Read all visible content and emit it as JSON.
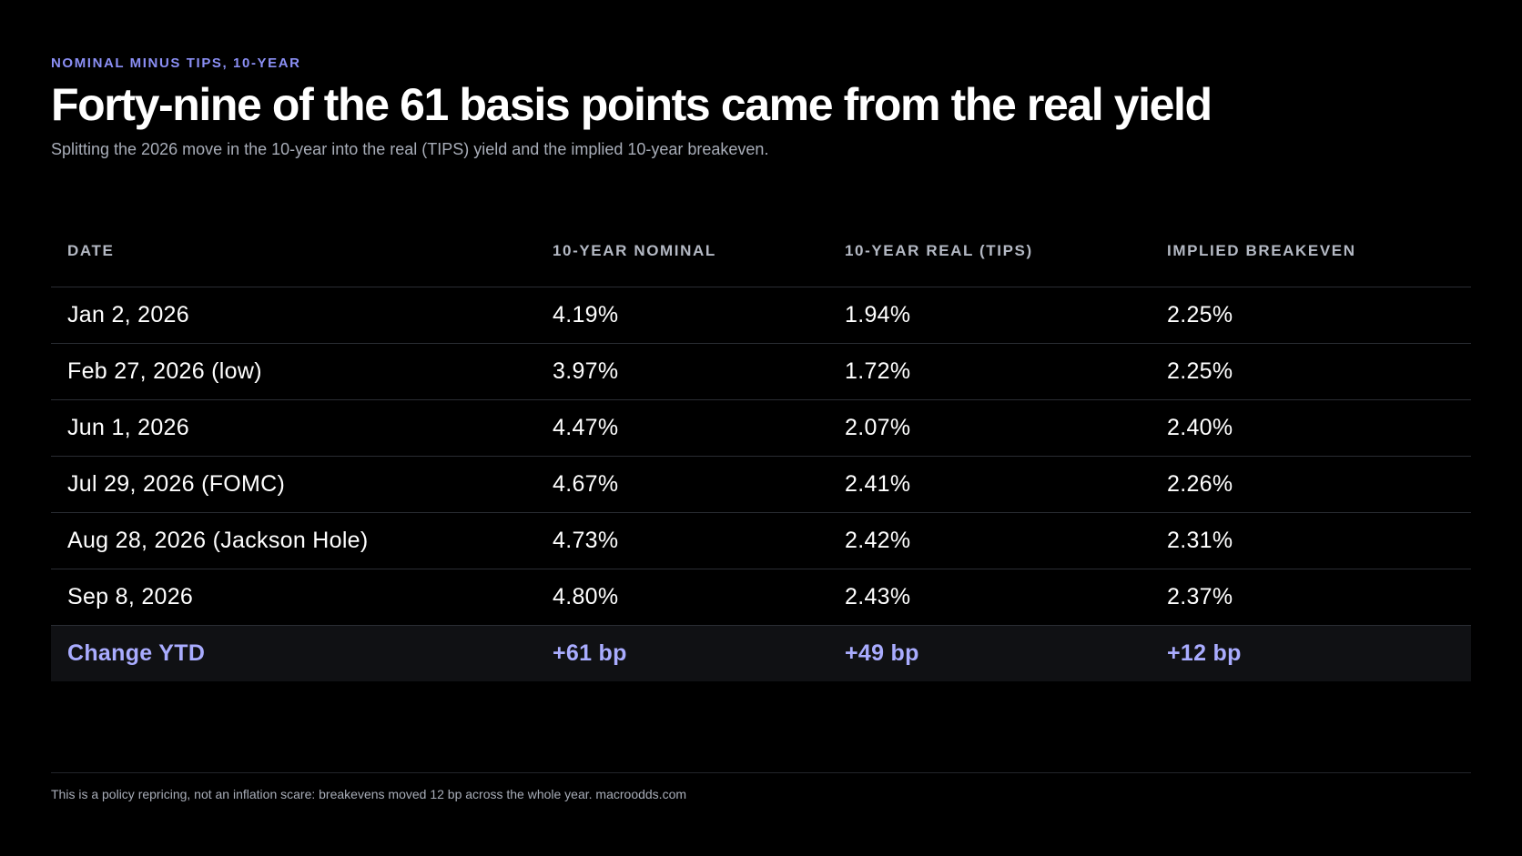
{
  "header": {
    "eyebrow": "NOMINAL MINUS TIPS, 10-YEAR",
    "title": "Forty-nine of the 61 basis points came from the real yield",
    "subtitle": "Splitting the 2026 move in the 10-year into the real (TIPS) yield and the implied 10-year breakeven."
  },
  "chart_data": {
    "type": "table",
    "columns": [
      "DATE",
      "10-YEAR NOMINAL",
      "10-YEAR REAL (TIPS)",
      "IMPLIED BREAKEVEN"
    ],
    "rows": [
      [
        "Jan 2, 2026",
        "4.19%",
        "1.94%",
        "2.25%"
      ],
      [
        "Feb 27, 2026 (low)",
        "3.97%",
        "1.72%",
        "2.25%"
      ],
      [
        "Jun 1, 2026",
        "4.47%",
        "2.07%",
        "2.40%"
      ],
      [
        "Jul 29, 2026 (FOMC)",
        "4.67%",
        "2.41%",
        "2.26%"
      ],
      [
        "Aug 28, 2026 (Jackson Hole)",
        "4.73%",
        "2.42%",
        "2.31%"
      ],
      [
        "Sep 8, 2026",
        "4.80%",
        "2.43%",
        "2.37%"
      ]
    ],
    "total_row": [
      "Change YTD",
      "+61 bp",
      "+49 bp",
      "+12 bp"
    ]
  },
  "footer": {
    "note": "This is a policy repricing, not an inflation scare: breakevens moved 12 bp across the whole year. macroodds.com"
  },
  "colors": {
    "background": "#000000",
    "accent": "#8b8ff5",
    "total_text": "#a9acff"
  }
}
